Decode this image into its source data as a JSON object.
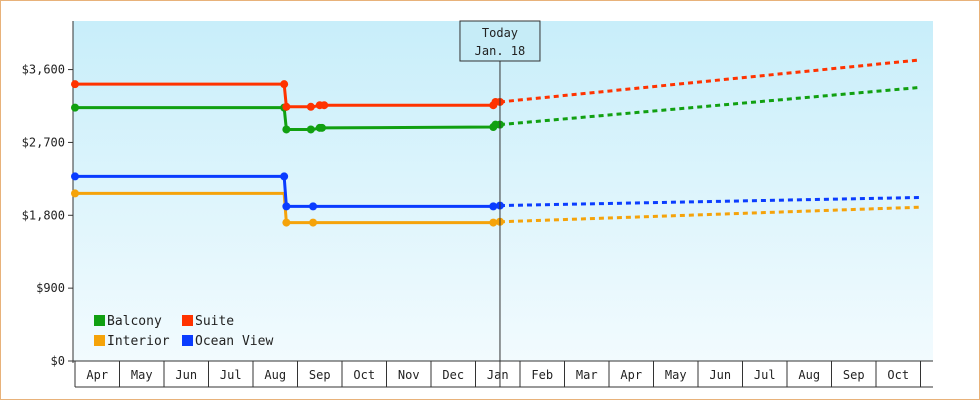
{
  "chart_data": {
    "type": "line",
    "title": "",
    "xlabel": "",
    "ylabel": "",
    "ylim": [
      0,
      4200
    ],
    "y_ticks": [
      {
        "value": 0,
        "label": "$0"
      },
      {
        "value": 900,
        "label": "$900"
      },
      {
        "value": 1800,
        "label": "$1,800"
      },
      {
        "value": 2700,
        "label": "$2,700"
      },
      {
        "value": 3600,
        "label": "$3,600"
      }
    ],
    "x_months": [
      "Apr",
      "May",
      "Jun",
      "Jul",
      "Aug",
      "Sep",
      "Oct",
      "Nov",
      "Dec",
      "Jan",
      "Feb",
      "Mar",
      "Apr",
      "May",
      "Jun",
      "Jul",
      "Aug",
      "Sep",
      "Oct"
    ],
    "x_range_months": [
      0,
      19
    ],
    "today": {
      "x": 9.55,
      "line1": "Today",
      "line2": "Jan. 18"
    },
    "legend_placement": "bottom-left",
    "series": [
      {
        "name": "Balcony",
        "color": "#11a011",
        "step": true,
        "points": [
          [
            0,
            3130
          ],
          [
            4.7,
            3130
          ],
          [
            4.75,
            2860
          ],
          [
            5.35,
            2860
          ],
          [
            5.5,
            2880
          ],
          [
            9.4,
            2890
          ],
          [
            9.45,
            2920
          ],
          [
            9.55,
            2920
          ]
        ],
        "forecast": [
          [
            9.55,
            2920
          ],
          [
            19,
            3380
          ]
        ]
      },
      {
        "name": "Suite",
        "color": "#ff3300",
        "step": true,
        "points": [
          [
            0,
            3420
          ],
          [
            4.7,
            3420
          ],
          [
            4.75,
            3140
          ],
          [
            5.35,
            3140
          ],
          [
            5.5,
            3160
          ],
          [
            9.4,
            3160
          ],
          [
            9.45,
            3200
          ],
          [
            9.55,
            3200
          ]
        ],
        "forecast": [
          [
            9.55,
            3200
          ],
          [
            19,
            3720
          ]
        ]
      },
      {
        "name": "Interior",
        "color": "#f5a30a",
        "step": true,
        "points": [
          [
            0,
            2070
          ],
          [
            4.7,
            2070
          ],
          [
            4.75,
            1710
          ],
          [
            5.35,
            1710
          ],
          [
            9.4,
            1710
          ],
          [
            9.55,
            1720
          ]
        ],
        "forecast": [
          [
            9.55,
            1720
          ],
          [
            19,
            1900
          ]
        ]
      },
      {
        "name": "Ocean View",
        "color": "#0a3cff",
        "step": true,
        "points": [
          [
            0,
            2280
          ],
          [
            4.7,
            2280
          ],
          [
            4.75,
            1910
          ],
          [
            5.35,
            1910
          ],
          [
            9.4,
            1910
          ],
          [
            9.55,
            1920
          ]
        ],
        "forecast": [
          [
            9.55,
            1920
          ],
          [
            19,
            2020
          ]
        ]
      }
    ],
    "markers": [
      {
        "series": 0,
        "x": [
          0,
          4.7,
          4.75,
          5.3,
          5.5,
          5.55,
          9.4,
          9.45,
          9.55
        ]
      },
      {
        "series": 1,
        "x": [
          0,
          4.7,
          4.75,
          5.3,
          5.5,
          5.6,
          9.4,
          9.45,
          9.55
        ]
      },
      {
        "series": 2,
        "x": [
          0,
          4.75,
          5.35,
          9.4,
          9.55
        ]
      },
      {
        "series": 3,
        "x": [
          0,
          4.7,
          4.75,
          5.35,
          9.4,
          9.55
        ]
      }
    ],
    "legend_order": [
      0,
      1,
      2,
      3
    ]
  }
}
